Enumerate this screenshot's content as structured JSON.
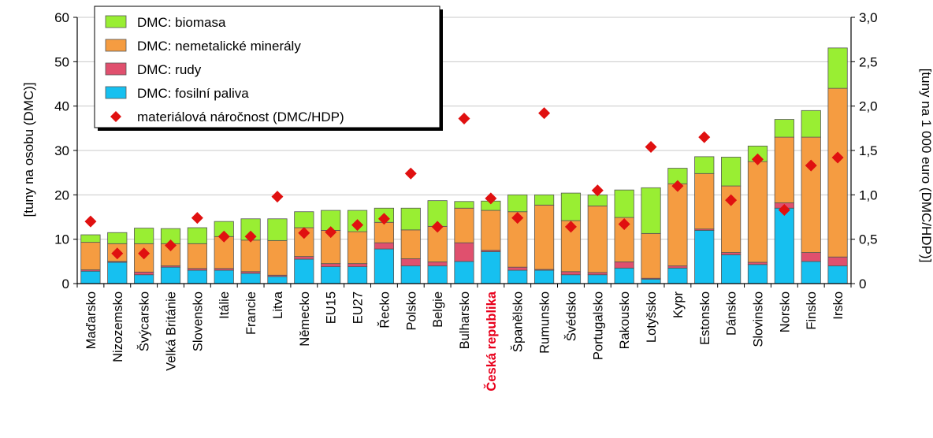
{
  "chart_data": {
    "type": "bar",
    "stacked": true,
    "categories": [
      "Maďarsko",
      "Nizozemsko",
      "Švýcarsko",
      "Velká Británie",
      "Slovensko",
      "Itálie",
      "Francie",
      "Litva",
      "Německo",
      "EU15",
      "EU27",
      "Řecko",
      "Polsko",
      "Belgie",
      "Bulharsko",
      "Česká republika",
      "Španělsko",
      "Rumunsko",
      "Švédsko",
      "Portugalsko",
      "Rakousko",
      "Lotyšsko",
      "Kypr",
      "Estonsko",
      "Dánsko",
      "Slovinsko",
      "Norsko",
      "Finsko",
      "Irsko"
    ],
    "highlight_category": "Česká republika",
    "highlight_color": "#e8001c",
    "series": [
      {
        "name": "DMC: fosilní paliva",
        "color": "#16c0f0",
        "values": [
          2.8,
          4.8,
          2.0,
          3.7,
          3.0,
          3.0,
          2.3,
          1.6,
          5.5,
          3.8,
          3.8,
          7.8,
          4.0,
          4.0,
          5.0,
          7.2,
          3.0,
          3.0,
          2.0,
          2.0,
          3.5,
          1.0,
          3.5,
          12.0,
          6.5,
          4.3,
          17.0,
          5.0,
          4.0
        ]
      },
      {
        "name": "DMC: rudy",
        "color": "#e0506e",
        "values": [
          0.3,
          0.2,
          0.6,
          0.3,
          0.4,
          0.4,
          0.4,
          0.3,
          0.6,
          0.7,
          0.7,
          1.4,
          1.6,
          0.9,
          4.2,
          0.3,
          0.7,
          0.2,
          0.7,
          0.5,
          1.4,
          0.2,
          0.5,
          0.3,
          0.5,
          0.5,
          1.2,
          2.0,
          2.0
        ]
      },
      {
        "name": "DMC: nemetalické minerály",
        "color": "#f59c41",
        "values": [
          6.2,
          4.0,
          6.4,
          5.0,
          5.6,
          7.2,
          7.1,
          7.8,
          6.5,
          7.5,
          7.2,
          4.6,
          6.5,
          8.0,
          7.8,
          9.0,
          12.5,
          14.5,
          11.5,
          15.0,
          10.0,
          10.1,
          18.5,
          12.5,
          15.0,
          22.7,
          14.8,
          26.0,
          38.0
        ]
      },
      {
        "name": "DMC: biomasa",
        "color": "#99ee33",
        "values": [
          1.7,
          2.5,
          3.5,
          3.4,
          3.6,
          3.4,
          4.8,
          4.9,
          3.6,
          4.5,
          4.8,
          3.2,
          4.9,
          5.8,
          1.5,
          2.1,
          3.8,
          2.3,
          6.2,
          2.5,
          6.2,
          10.3,
          3.5,
          3.8,
          6.5,
          3.5,
          4.0,
          6.0,
          9.1
        ]
      }
    ],
    "intensity": {
      "name": "materiálová náročnost (DMC/HDP)",
      "color": "#e01010",
      "axis": "right",
      "values": [
        0.7,
        0.34,
        0.34,
        0.43,
        0.74,
        0.53,
        0.53,
        0.98,
        0.57,
        0.58,
        0.66,
        0.73,
        1.24,
        0.64,
        1.86,
        0.96,
        0.74,
        1.92,
        0.64,
        1.05,
        0.67,
        1.54,
        1.1,
        1.65,
        0.94,
        1.4,
        0.83,
        1.33,
        1.42
      ]
    },
    "y_left": {
      "label": "[tuny na osobu (DMC)]",
      "min": 0,
      "max": 60,
      "ticks": [
        "0",
        "10",
        "20",
        "30",
        "40",
        "50",
        "60"
      ]
    },
    "y_right": {
      "label": "[tuny na 1 000 euro (DMC/HDP)]",
      "min": 0,
      "max": 3.0,
      "ticks": [
        "0",
        "0,5",
        "1,0",
        "1,5",
        "2,0",
        "2,5",
        "3,0"
      ]
    },
    "grid": "horizontal",
    "legend_position": "top-left"
  }
}
